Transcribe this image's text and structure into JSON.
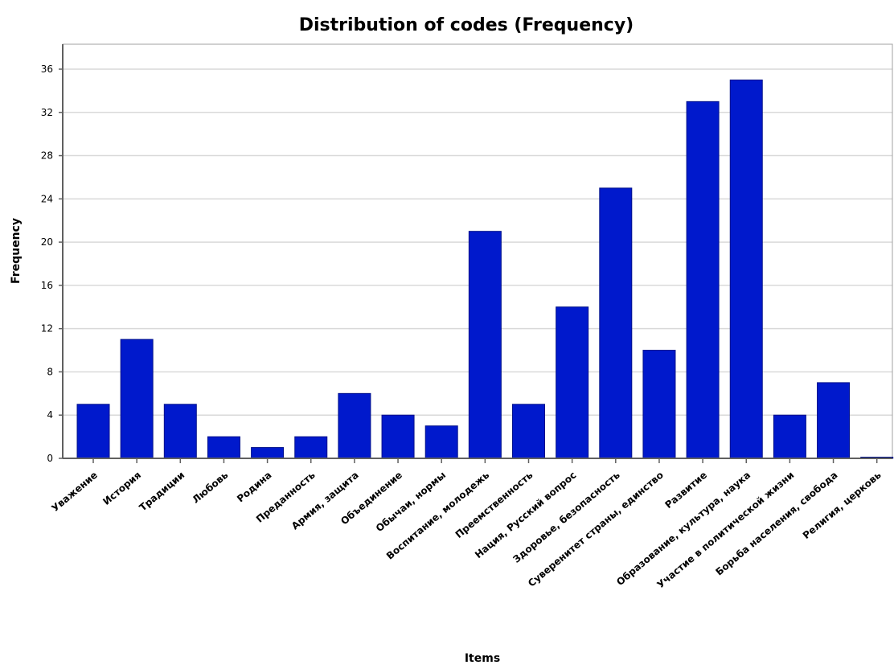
{
  "chart_data": {
    "type": "bar",
    "title": "Distribution of codes (Frequency)",
    "xlabel": "Items",
    "ylabel": "Frequency",
    "ylim": [
      0,
      38
    ],
    "yticks": [
      0,
      4,
      8,
      12,
      16,
      20,
      24,
      28,
      32,
      36
    ],
    "grid": true,
    "bar_color": "#0019cc",
    "categories": [
      "Уважение",
      "История",
      "Традиции",
      "Любовь",
      "Родина",
      "Преданность",
      "Армия, защита",
      "Объединение",
      "Обычаи, нормы",
      "Воспитание, молодежь",
      "Преемственность",
      "Нация, Русский вопрос",
      "Здоровье, безопасность",
      "Суверенитет страны, единство",
      "Развитие",
      "Образование, культура, наука",
      "Участие в политической жизни",
      "Борьба населения, свобода",
      "Религия, церковь"
    ],
    "values": [
      5,
      11,
      5,
      2,
      1,
      2,
      6,
      4,
      3,
      21,
      5,
      14,
      25,
      10,
      33,
      35,
      4,
      7,
      0
    ]
  }
}
